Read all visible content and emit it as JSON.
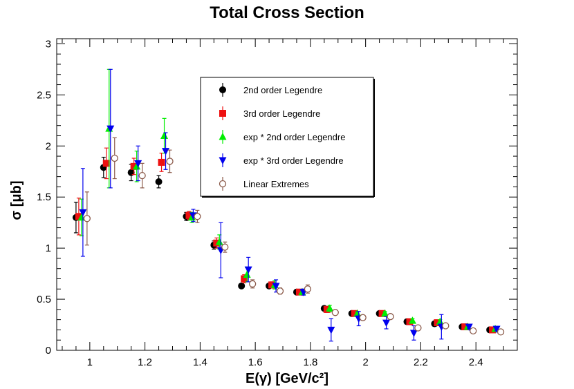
{
  "chart_data": {
    "type": "scatter",
    "title": "Total Cross Section",
    "xlabel": "E(γ) [GeV/c²]",
    "ylabel": "σ [μb]",
    "xlim": [
      0.88,
      2.55
    ],
    "ylim": [
      0,
      3.05
    ],
    "x_ticks": [
      {
        "value": 1.0,
        "label": "1"
      },
      {
        "value": 1.2,
        "label": "1.2"
      },
      {
        "value": 1.4,
        "label": "1.4"
      },
      {
        "value": 1.6,
        "label": "1.6"
      },
      {
        "value": 1.8,
        "label": "1.8"
      },
      {
        "value": 2.0,
        "label": "2"
      },
      {
        "value": 2.2,
        "label": "2.2"
      },
      {
        "value": 2.4,
        "label": "2.4"
      }
    ],
    "y_ticks": [
      {
        "value": 0,
        "label": "0"
      },
      {
        "value": 0.5,
        "label": "0.5"
      },
      {
        "value": 1.0,
        "label": "1"
      },
      {
        "value": 1.5,
        "label": "1.5"
      },
      {
        "value": 2.0,
        "label": "2"
      },
      {
        "value": 2.5,
        "label": "2.5"
      },
      {
        "value": 3.0,
        "label": "3"
      }
    ],
    "legend_position": "top-center",
    "series": [
      {
        "name": "2nd order Legendre",
        "color": "#000000",
        "marker": "circle",
        "x": [
          0.95,
          1.05,
          1.15,
          1.25,
          1.35,
          1.45,
          1.55,
          1.65,
          1.75,
          1.85,
          1.95,
          2.05,
          2.15,
          2.25,
          2.35,
          2.45
        ],
        "y": [
          1.3,
          1.79,
          1.74,
          1.65,
          1.31,
          1.03,
          0.63,
          0.63,
          0.57,
          0.41,
          0.36,
          0.36,
          0.28,
          0.26,
          0.23,
          0.2
        ],
        "err": [
          0.15,
          0.1,
          0.08,
          0.06,
          0.04,
          0.04,
          0.02,
          0.02,
          0.02,
          0.02,
          0.02,
          0.02,
          0.02,
          0.02,
          0.02,
          0.02
        ]
      },
      {
        "name": "3rd order Legendre",
        "color": "#ee1111",
        "marker": "square",
        "x": [
          0.96,
          1.06,
          1.16,
          1.26,
          1.36,
          1.46,
          1.56,
          1.66,
          1.76,
          1.86,
          1.96,
          2.06,
          2.16,
          2.26,
          2.36,
          2.46
        ],
        "y": [
          1.31,
          1.83,
          1.8,
          1.84,
          1.32,
          1.05,
          0.7,
          0.64,
          0.57,
          0.4,
          0.36,
          0.36,
          0.28,
          0.27,
          0.23,
          0.2
        ],
        "err": [
          0.18,
          0.15,
          0.08,
          0.09,
          0.04,
          0.05,
          0.04,
          0.03,
          0.02,
          0.03,
          0.02,
          0.02,
          0.02,
          0.02,
          0.02,
          0.02
        ]
      },
      {
        "name": "exp * 2nd order Legendre",
        "color": "#00ee00",
        "marker": "triangle-up",
        "x": [
          0.97,
          1.07,
          1.17,
          1.27,
          1.37,
          1.47,
          1.57,
          1.67,
          1.77,
          1.87,
          1.97,
          2.07,
          2.17,
          2.27,
          2.37,
          2.47
        ],
        "y": [
          1.3,
          2.17,
          1.8,
          2.1,
          1.3,
          1.06,
          0.74,
          0.64,
          0.57,
          0.41,
          0.36,
          0.36,
          0.29,
          0.28,
          0.23,
          0.21
        ],
        "err": [
          0.18,
          0.58,
          0.15,
          0.17,
          0.05,
          0.07,
          0.07,
          0.04,
          0.02,
          0.03,
          0.02,
          0.02,
          0.02,
          0.02,
          0.02,
          0.02
        ]
      },
      {
        "name": "exp * 3rd order Legendre",
        "color": "#0000ee",
        "marker": "triangle-down",
        "x": [
          0.975,
          1.075,
          1.175,
          1.275,
          1.375,
          1.475,
          1.575,
          1.675,
          1.775,
          1.875,
          1.975,
          2.075,
          2.175,
          2.275,
          2.375,
          2.475
        ],
        "y": [
          1.35,
          2.17,
          1.83,
          1.95,
          1.32,
          0.98,
          0.79,
          0.63,
          0.57,
          0.2,
          0.31,
          0.27,
          0.17,
          0.23,
          0.23,
          0.21
        ],
        "err": [
          0.43,
          0.58,
          0.17,
          0.18,
          0.06,
          0.27,
          0.12,
          0.06,
          0.03,
          0.11,
          0.07,
          0.06,
          0.07,
          0.12,
          0.02,
          0.02
        ]
      },
      {
        "name": "Linear Extremes",
        "color": "#8b5a4a",
        "marker": "open-circle",
        "x": [
          0.99,
          1.09,
          1.19,
          1.29,
          1.39,
          1.49,
          1.59,
          1.69,
          1.79,
          1.89,
          1.99,
          2.09,
          2.19,
          2.29,
          2.39,
          2.49
        ],
        "y": [
          1.29,
          1.88,
          1.71,
          1.85,
          1.31,
          1.01,
          0.65,
          0.58,
          0.6,
          0.37,
          0.32,
          0.33,
          0.22,
          0.24,
          0.19,
          0.18
        ],
        "err": [
          0.26,
          0.2,
          0.12,
          0.11,
          0.06,
          0.05,
          0.04,
          0.03,
          0.04,
          0.02,
          0.02,
          0.02,
          0.02,
          0.02,
          0.02,
          0.02
        ]
      }
    ]
  }
}
